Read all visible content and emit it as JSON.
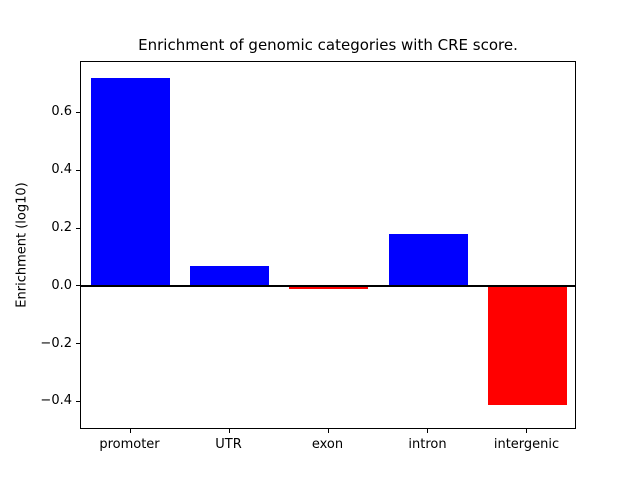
{
  "chart_data": {
    "type": "bar",
    "title": "Enrichment of genomic categories with CRE score.",
    "xlabel": "",
    "ylabel": "Enrichment (log10)",
    "categories": [
      "promoter",
      "UTR",
      "exon",
      "intron",
      "intergenic"
    ],
    "values": [
      0.72,
      0.07,
      -0.012,
      0.18,
      -0.41
    ],
    "ylim": [
      -0.497,
      0.776
    ],
    "yticks": [
      -0.4,
      -0.2,
      0.0,
      0.2,
      0.4,
      0.6
    ],
    "grid": false,
    "legend": "none",
    "bar_colors": {
      "positive": "#0000ff",
      "negative": "#ff0000"
    },
    "zero_line_color": "#000000",
    "axis_color": "#000000",
    "background_color": "#ffffff"
  }
}
